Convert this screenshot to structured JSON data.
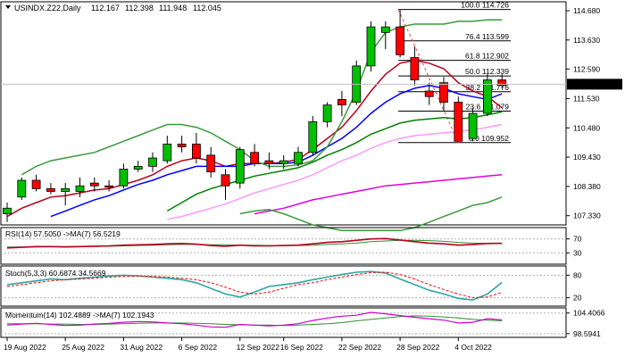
{
  "chart_data": {
    "type": "candlestick",
    "title": "USINDX.Z22,Daily",
    "ohlc_header": [
      "112.167",
      "112.398",
      "111.948",
      "112.045"
    ],
    "last_price": 112.045,
    "price_ticks": [
      114.68,
      113.63,
      112.59,
      111.53,
      110.48,
      109.43,
      108.38,
      107.33
    ],
    "price_range": [
      107.0,
      115.0
    ],
    "x_labels": [
      "19 Aug 2022",
      "25 Aug 2022",
      "31 Aug 2022",
      "6 Sep 2022",
      "12 Sep 2022",
      "16 Sep 2022",
      "22 Sep 2022",
      "28 Sep 2022",
      "4 Oct 2022"
    ],
    "x_label_index": [
      0,
      4,
      8,
      12,
      16,
      19,
      23,
      27,
      31
    ],
    "candles": [
      {
        "o": 107.4,
        "h": 107.8,
        "l": 107.1,
        "c": 107.6
      },
      {
        "o": 108.0,
        "h": 108.7,
        "l": 107.9,
        "c": 108.6
      },
      {
        "o": 108.6,
        "h": 108.8,
        "l": 108.2,
        "c": 108.3
      },
      {
        "o": 108.3,
        "h": 108.5,
        "l": 108.1,
        "c": 108.2
      },
      {
        "o": 108.2,
        "h": 108.5,
        "l": 107.7,
        "c": 108.3
      },
      {
        "o": 108.2,
        "h": 108.7,
        "l": 108.0,
        "c": 108.4
      },
      {
        "o": 108.5,
        "h": 108.7,
        "l": 108.2,
        "c": 108.4
      },
      {
        "o": 108.4,
        "h": 108.6,
        "l": 108.2,
        "c": 108.35
      },
      {
        "o": 108.4,
        "h": 109.2,
        "l": 108.3,
        "c": 109.0
      },
      {
        "o": 109.0,
        "h": 109.3,
        "l": 108.9,
        "c": 109.1
      },
      {
        "o": 109.1,
        "h": 109.6,
        "l": 108.9,
        "c": 109.4
      },
      {
        "o": 109.3,
        "h": 110.2,
        "l": 109.2,
        "c": 109.9
      },
      {
        "o": 109.9,
        "h": 110.2,
        "l": 109.6,
        "c": 109.8
      },
      {
        "o": 109.9,
        "h": 110.3,
        "l": 109.2,
        "c": 109.4
      },
      {
        "o": 109.5,
        "h": 109.8,
        "l": 108.7,
        "c": 108.9
      },
      {
        "o": 108.8,
        "h": 109.0,
        "l": 107.9,
        "c": 108.4
      },
      {
        "o": 108.5,
        "h": 109.8,
        "l": 108.3,
        "c": 109.7
      },
      {
        "o": 109.6,
        "h": 109.9,
        "l": 109.1,
        "c": 109.2
      },
      {
        "o": 109.3,
        "h": 109.6,
        "l": 109.0,
        "c": 109.2
      },
      {
        "o": 109.2,
        "h": 109.5,
        "l": 109.0,
        "c": 109.3
      },
      {
        "o": 109.2,
        "h": 109.8,
        "l": 109.1,
        "c": 109.6
      },
      {
        "o": 109.6,
        "h": 110.9,
        "l": 109.5,
        "c": 110.7
      },
      {
        "o": 110.7,
        "h": 111.4,
        "l": 110.5,
        "c": 111.3
      },
      {
        "o": 111.5,
        "h": 111.8,
        "l": 110.9,
        "c": 111.3
      },
      {
        "o": 111.4,
        "h": 112.9,
        "l": 111.3,
        "c": 112.7
      },
      {
        "o": 112.7,
        "h": 114.3,
        "l": 112.5,
        "c": 114.1
      },
      {
        "o": 113.9,
        "h": 114.3,
        "l": 113.3,
        "c": 114.1
      },
      {
        "o": 114.1,
        "h": 114.7,
        "l": 113.0,
        "c": 113.1
      },
      {
        "o": 113.0,
        "h": 113.4,
        "l": 112.0,
        "c": 112.2
      },
      {
        "o": 111.8,
        "h": 112.1,
        "l": 111.3,
        "c": 111.6
      },
      {
        "o": 112.1,
        "h": 112.3,
        "l": 111.1,
        "c": 111.4
      },
      {
        "o": 111.4,
        "h": 111.6,
        "l": 110.0,
        "c": 110.0
      },
      {
        "o": 110.1,
        "h": 111.2,
        "l": 110.0,
        "c": 111.0
      },
      {
        "o": 111.0,
        "h": 112.4,
        "l": 110.9,
        "c": 112.2
      },
      {
        "o": 112.2,
        "h": 112.4,
        "l": 111.9,
        "c": 112.0
      }
    ],
    "moving_averages": [
      {
        "color": "#b8001c",
        "values": [
          107.3,
          107.6,
          107.8,
          108.0,
          108.05,
          108.15,
          108.25,
          108.3,
          108.45,
          108.6,
          108.8,
          109.1,
          109.3,
          109.4,
          109.3,
          109.1,
          109.2,
          109.2,
          109.2,
          109.25,
          109.35,
          109.7,
          110.1,
          110.5,
          111.1,
          111.8,
          112.4,
          112.8,
          112.9,
          112.8,
          112.6,
          112.1,
          111.8,
          111.6,
          111.2
        ]
      },
      {
        "color": "#0000ff",
        "values": [
          null,
          null,
          null,
          107.3,
          107.5,
          107.7,
          107.9,
          108.05,
          108.25,
          108.45,
          108.6,
          108.8,
          108.95,
          109.1,
          109.1,
          109.1,
          109.1,
          109.2,
          109.2,
          109.2,
          109.25,
          109.5,
          109.8,
          110.1,
          110.5,
          111.0,
          111.4,
          111.7,
          111.9,
          112.0,
          111.9,
          111.7,
          111.6,
          111.5,
          111.7
        ]
      },
      {
        "color": "#008000",
        "values": [
          null,
          null,
          null,
          null,
          null,
          null,
          null,
          null,
          null,
          null,
          null,
          107.5,
          107.8,
          108.1,
          108.3,
          108.45,
          108.6,
          108.75,
          108.85,
          108.95,
          109.05,
          109.25,
          109.5,
          109.7,
          109.95,
          110.25,
          110.45,
          110.65,
          110.75,
          110.8,
          110.85,
          110.8,
          110.85,
          110.95,
          111.05
        ]
      },
      {
        "color": "#e000e0",
        "values": [
          null,
          null,
          null,
          null,
          null,
          null,
          null,
          null,
          null,
          null,
          null,
          null,
          null,
          null,
          null,
          null,
          null,
          107.4,
          107.5,
          107.6,
          107.75,
          107.9,
          108.0,
          108.1,
          108.2,
          108.3,
          108.4,
          108.45,
          108.5,
          108.55,
          108.6,
          108.65,
          108.7,
          108.75,
          108.8
        ]
      },
      {
        "color": "#ff99ff",
        "values": [
          null,
          null,
          null,
          null,
          null,
          null,
          null,
          null,
          null,
          null,
          null,
          107.2,
          107.3,
          107.45,
          107.6,
          107.75,
          107.95,
          108.15,
          108.3,
          108.45,
          108.6,
          108.8,
          109.05,
          109.3,
          109.5,
          109.75,
          109.95,
          110.1,
          110.2,
          110.25,
          110.3,
          110.35,
          110.4,
          110.5,
          110.6
        ]
      },
      {
        "color": "#3a9a3a",
        "values": [
          null,
          108.8,
          109.1,
          109.3,
          109.4,
          109.5,
          109.6,
          109.8,
          110.0,
          110.2,
          110.4,
          110.6,
          110.6,
          110.5,
          110.3,
          110.0,
          109.7,
          109.3,
          109.1,
          109.1,
          109.15,
          109.3,
          109.8,
          110.7,
          111.8,
          113.2,
          113.9,
          114.1,
          114.2,
          114.2,
          114.2,
          114.3,
          114.3,
          114.35,
          114.35
        ]
      },
      {
        "color": "#3a9a3a",
        "values": [
          null,
          null,
          null,
          null,
          null,
          null,
          null,
          null,
          null,
          null,
          null,
          null,
          null,
          null,
          null,
          null,
          107.4,
          107.5,
          107.55,
          107.4,
          107.2,
          107.0,
          106.9,
          106.8,
          106.8,
          106.8,
          106.8,
          106.8,
          106.9,
          107.1,
          107.3,
          107.5,
          107.7,
          107.8,
          108.0
        ]
      }
    ],
    "fibonacci": {
      "levels": [
        {
          "label": "100.0 114.726",
          "value": 114.726
        },
        {
          "label": "76.4 113.599",
          "value": 113.599
        },
        {
          "label": "61.8 112.902",
          "value": 112.902
        },
        {
          "label": "50.0 112.339",
          "value": 112.339
        },
        {
          "label": "38.2 111.776",
          "value": 111.776
        },
        {
          "label": "23.6 111.079",
          "value": 111.079
        },
        {
          "label": "0.0 109.952",
          "value": 109.952
        }
      ],
      "start_index": 27
    },
    "rsi": {
      "label": "RSI(14) 57.5050 ->MA(7) 56.5219",
      "ticks": [
        "70",
        "30"
      ],
      "tick_values": [
        70,
        30
      ],
      "range": [
        0,
        100
      ],
      "rsi": [
        44,
        46,
        48,
        48,
        47,
        48,
        49,
        50,
        52,
        53,
        54,
        56,
        57,
        55,
        51,
        49,
        52,
        50,
        50,
        51,
        52,
        56,
        60,
        62,
        66,
        70,
        71,
        67,
        62,
        58,
        56,
        52,
        54,
        57,
        57.5
      ],
      "ma": [
        47,
        47,
        47,
        48,
        48,
        48,
        48,
        49,
        50,
        51,
        52,
        53,
        54,
        54,
        53,
        53,
        52,
        52,
        51,
        51,
        51,
        52,
        54,
        56,
        58,
        62,
        64,
        66,
        66,
        65,
        63,
        60,
        58,
        57,
        56.5
      ]
    },
    "stoch": {
      "label": "Stoch(5,3,3) 60.6874 34.5669",
      "ticks": [
        "80",
        "20"
      ],
      "tick_values": [
        80,
        20
      ],
      "range": [
        0,
        100
      ],
      "k": [
        55,
        60,
        65,
        70,
        68,
        72,
        75,
        78,
        80,
        78,
        75,
        72,
        68,
        60,
        45,
        30,
        22,
        35,
        50,
        55,
        60,
        68,
        75,
        82,
        88,
        90,
        86,
        70,
        55,
        40,
        30,
        18,
        14,
        30,
        60.7
      ],
      "d": [
        50,
        55,
        60,
        65,
        68,
        70,
        72,
        75,
        77,
        78,
        77,
        75,
        72,
        68,
        60,
        48,
        35,
        30,
        35,
        45,
        55,
        60,
        68,
        75,
        82,
        87,
        88,
        82,
        70,
        55,
        42,
        30,
        20,
        22,
        34.6
      ]
    },
    "momentum": {
      "label": "Momentum(14) 102.4889 ->MA(7) 102.1943",
      "ticks": [
        "104.4066",
        "98.5941"
      ],
      "tick_values": [
        104.4066,
        98.5941
      ],
      "range": [
        97.8,
        105.6
      ],
      "momentum": [
        101.0,
        101.3,
        101.5,
        101.2,
        100.9,
        101.0,
        101.3,
        101.5,
        101.8,
        102.0,
        101.9,
        101.6,
        101.4,
        101.0,
        100.5,
        100.4,
        101.2,
        101.0,
        100.8,
        101.0,
        101.4,
        102.3,
        103.0,
        103.5,
        103.8,
        104.6,
        104.2,
        103.7,
        103.2,
        102.8,
        102.4,
        101.6,
        101.8,
        102.8,
        102.5
      ],
      "ma": [
        101.4,
        101.4,
        101.4,
        101.3,
        101.3,
        101.2,
        101.2,
        101.3,
        101.4,
        101.5,
        101.6,
        101.6,
        101.6,
        101.5,
        101.4,
        101.2,
        101.1,
        101.0,
        101.0,
        100.9,
        101.0,
        101.2,
        101.4,
        101.7,
        102.2,
        102.6,
        103.0,
        103.4,
        103.6,
        103.5,
        103.3,
        103.0,
        102.6,
        102.4,
        102.2
      ]
    },
    "colors": {
      "bull": "#00c000",
      "bear": "#ff0000",
      "candle_outline": "#000000",
      "price_badge": "#000000",
      "osc_main": "#b8001c",
      "osc_ma": "#2f8f2f",
      "stoch_k": "#2ca6a6",
      "stoch_d": "#ff0000",
      "mom_main": "#cc00cc",
      "mom_ma": "#2f8f2f",
      "level_line": "#b0b0b0"
    }
  }
}
